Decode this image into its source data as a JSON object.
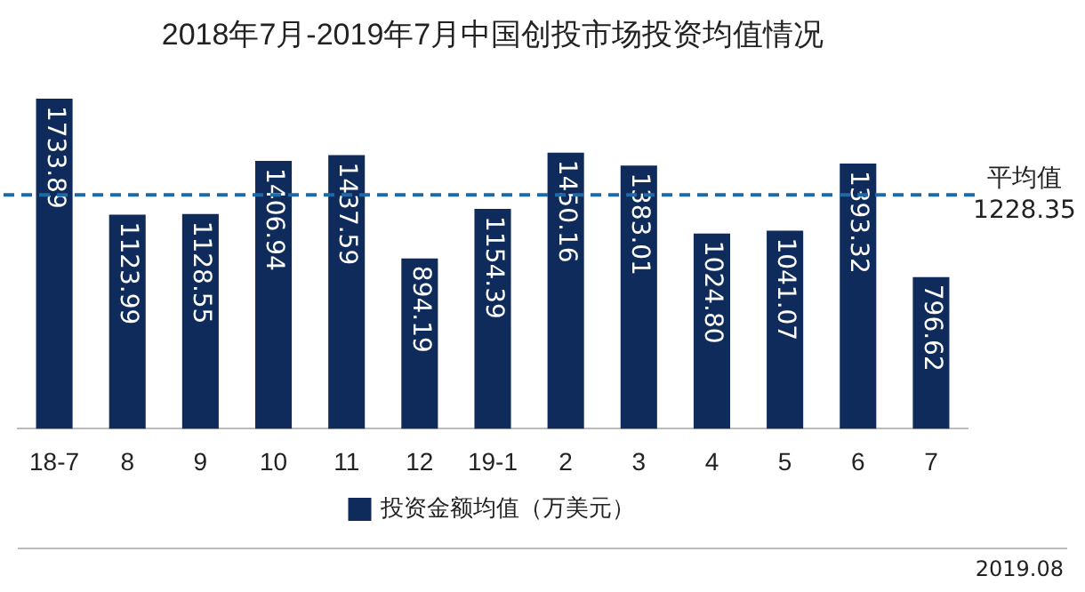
{
  "chart_data": {
    "type": "bar",
    "title": "2018年7月-2019年7月中国创投市场投资均值情况",
    "categories": [
      "18-7",
      "8",
      "9",
      "10",
      "11",
      "12",
      "19-1",
      "2",
      "3",
      "4",
      "5",
      "6",
      "7"
    ],
    "series": [
      {
        "name": "投资金额均值（万美元）",
        "color": "#0f2b5b",
        "values": [
          1733.89,
          1123.99,
          1128.55,
          1406.94,
          1437.59,
          894.19,
          1154.39,
          1450.16,
          1383.01,
          1024.8,
          1041.07,
          1393.32,
          796.62
        ],
        "value_labels": [
          "1733.89",
          "1123.99",
          "1128.55",
          "1406.94",
          "1437.59",
          "894.19",
          "1154.39",
          "1450.16",
          "1383.01",
          "1024.80",
          "1041.07",
          "1393.32",
          "796.62"
        ]
      }
    ],
    "ref_lines": [
      {
        "axis": "y",
        "value": 1228.35,
        "label": "平均值\n1228.35",
        "color": "#1f6aa5",
        "line_style": "dashed"
      }
    ],
    "legend": "bottom",
    "annotations": [
      "2019.08"
    ]
  }
}
